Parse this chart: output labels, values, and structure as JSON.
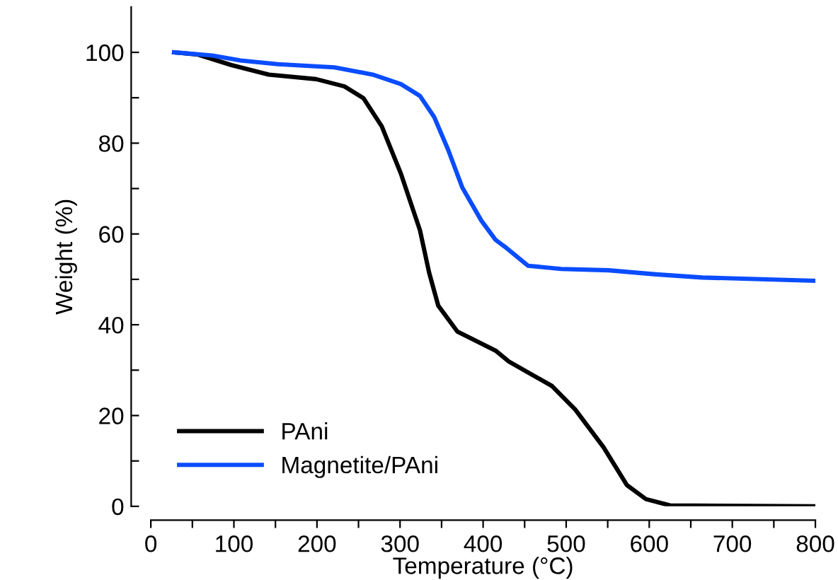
{
  "chart_data": {
    "type": "line",
    "xlabel": "Temperature (°C)",
    "ylabel": "Weight (%)",
    "xlim": [
      0,
      800
    ],
    "ylim": [
      0,
      110
    ],
    "xticks": [
      0,
      {
        "value": 50,
        "label": null
      },
      100,
      {
        "value": 150,
        "label": null
      },
      200,
      {
        "value": 250,
        "label": null
      },
      300,
      {
        "value": 350,
        "label": null
      },
      400,
      {
        "value": 450,
        "label": null
      },
      500,
      {
        "value": 550,
        "label": null
      },
      600,
      {
        "value": 650,
        "label": null
      },
      700,
      {
        "value": 750,
        "label": null
      },
      800
    ],
    "yticks": [
      0,
      {
        "value": 10,
        "label": null
      },
      20,
      {
        "value": 30,
        "label": null
      },
      40,
      {
        "value": 50,
        "label": null
      },
      60,
      {
        "value": 70,
        "label": null
      },
      80,
      {
        "value": 90,
        "label": null
      },
      100
    ],
    "grid": false,
    "legend": "bottom left",
    "marker": "none",
    "line_style": "solid",
    "series": [
      {
        "name": "PAni",
        "color": "#000000",
        "x": [
          28,
          57,
          97,
          142,
          199,
          233,
          256,
          278,
          301,
          324,
          335,
          346,
          369,
          392,
          415,
          431,
          483,
          511,
          545,
          573,
          596,
          625,
          798
        ],
        "values": [
          100,
          99.5,
          97.2,
          95.1,
          94.1,
          92.5,
          89.9,
          83.7,
          73.3,
          60.8,
          51.5,
          44.2,
          38.5,
          36.4,
          34.3,
          31.9,
          26.5,
          21.3,
          13,
          4.7,
          1.6,
          0.2,
          0
        ]
      },
      {
        "name": "Magnetite/PAni",
        "color": "#0a4cff",
        "x": [
          28,
          74,
          108,
          153,
          221,
          267,
          301,
          324,
          341,
          358,
          375,
          398,
          415,
          426,
          454,
          494,
          551,
          608,
          664,
          798
        ],
        "values": [
          100,
          99.3,
          98.2,
          97.4,
          96.7,
          95.1,
          93,
          90.4,
          85.8,
          78.5,
          70.2,
          62.9,
          58.7,
          57.2,
          53,
          52.3,
          52,
          51.1,
          50.4,
          49.7
        ]
      }
    ]
  }
}
